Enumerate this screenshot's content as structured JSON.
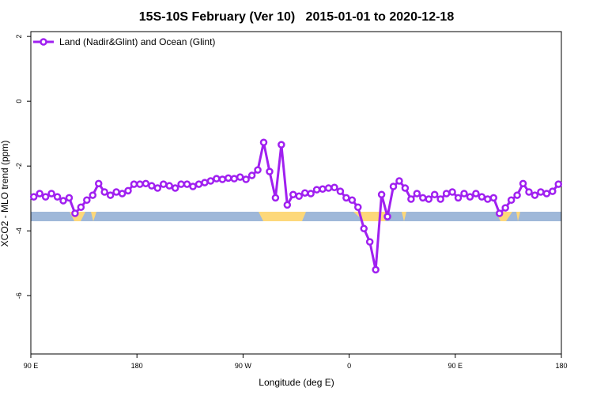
{
  "chart_data": {
    "type": "line",
    "title": "15S-10S February (Ver 10)   2015-01-01 to 2020-12-18",
    "x_label": "Longitude (deg E)",
    "y_label": "XCO2 - MLO trend (ppm)",
    "xlim": [
      90,
      540
    ],
    "xticks": [
      {
        "value": 90,
        "label": "90 E"
      },
      180,
      {
        "value": 270,
        "label": "90 W"
      },
      {
        "value": 360,
        "label": "0"
      },
      {
        "value": 450,
        "label": "90 E"
      },
      {
        "value": 540,
        "label": "180"
      }
    ],
    "ylim": [
      -7.8,
      2.15
    ],
    "yticks": [
      -6,
      -4,
      -2,
      0,
      2
    ],
    "legend": "top-left",
    "x": [
      92.5,
      97.5,
      102.5,
      107.5,
      112.5,
      117.5,
      122.5,
      127.5,
      132.5,
      137.5,
      142.5,
      147.5,
      152.5,
      157.5,
      162.5,
      167.5,
      172.5,
      177.5,
      182.5,
      187.5,
      192.5,
      197.5,
      202.5,
      207.5,
      212.5,
      217.5,
      222.5,
      227.5,
      232.5,
      237.5,
      242.5,
      247.5,
      252.5,
      257.5,
      262.5,
      267.5,
      272.5,
      277.5,
      282.5,
      287.5,
      292.5,
      297.5,
      302.5,
      307.5,
      312.5,
      317.5,
      322.5,
      327.5,
      332.5,
      337.5,
      342.5,
      347.5,
      352.5,
      357.5,
      362.5,
      367.5,
      372.5,
      377.5,
      382.5,
      387.5,
      392.5,
      397.5,
      402.5,
      407.5,
      412.5,
      417.5,
      422.5,
      427.5,
      432.5,
      437.5,
      442.5,
      447.5,
      452.5,
      457.5,
      462.5,
      467.5,
      472.5,
      477.5,
      482.5,
      487.5,
      492.5,
      497.5,
      502.5,
      507.5,
      512.5,
      517.5,
      522.5,
      527.5,
      532.5,
      537.5
    ],
    "series": [
      {
        "name": "Land (Nadir&Glint) and Ocean (Glint)",
        "color": "#a020f0",
        "values": [
          -2.95,
          -2.85,
          -2.95,
          -2.85,
          -2.95,
          -3.07,
          -2.98,
          -3.46,
          -3.27,
          -3.05,
          -2.9,
          -2.54,
          -2.8,
          -2.9,
          -2.8,
          -2.85,
          -2.76,
          -2.56,
          -2.56,
          -2.54,
          -2.61,
          -2.68,
          -2.56,
          -2.61,
          -2.68,
          -2.56,
          -2.56,
          -2.63,
          -2.56,
          -2.51,
          -2.46,
          -2.39,
          -2.41,
          -2.37,
          -2.39,
          -2.34,
          -2.41,
          -2.29,
          -2.12,
          -1.27,
          -2.17,
          -2.98,
          -1.34,
          -3.2,
          -2.88,
          -2.93,
          -2.83,
          -2.85,
          -2.73,
          -2.71,
          -2.68,
          -2.66,
          -2.78,
          -2.98,
          -3.05,
          -3.27,
          -3.93,
          -4.34,
          -5.2,
          -2.88,
          -3.56,
          -2.63,
          -2.46,
          -2.68,
          -3.02,
          -2.85,
          -2.98,
          -3.02,
          -2.88,
          -3.02,
          -2.85,
          -2.8,
          -2.98,
          -2.85,
          -2.95,
          -2.85,
          -2.95,
          -3.02,
          -2.98,
          -3.46,
          -3.29,
          -3.05,
          -2.9,
          -2.54,
          -2.8,
          -2.9,
          -2.8,
          -2.85,
          -2.78,
          -2.56
        ]
      }
    ]
  }
}
